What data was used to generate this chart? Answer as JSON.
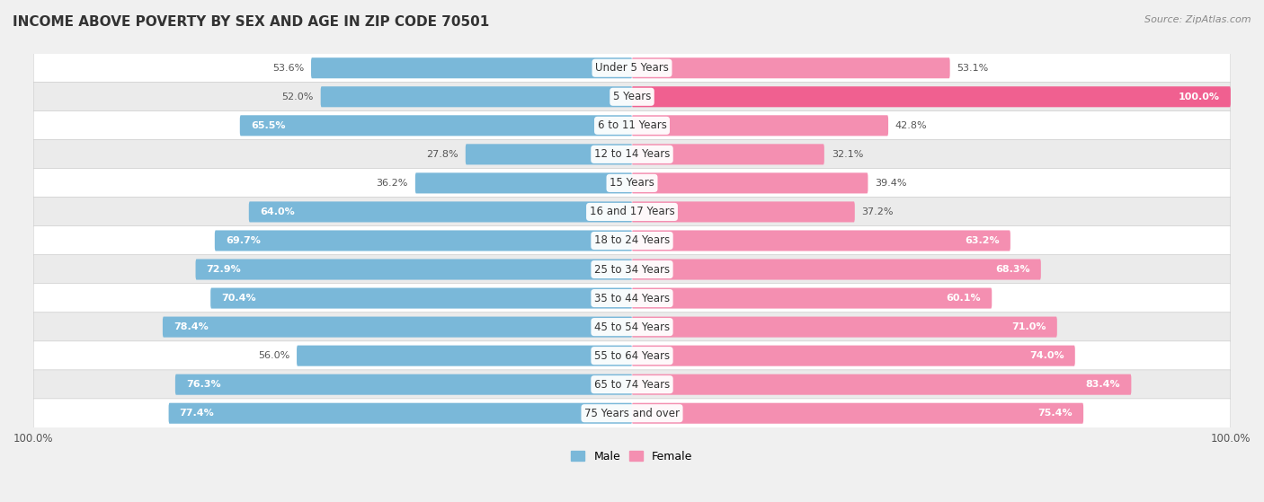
{
  "title": "INCOME ABOVE POVERTY BY SEX AND AGE IN ZIP CODE 70501",
  "source": "Source: ZipAtlas.com",
  "categories": [
    "Under 5 Years",
    "5 Years",
    "6 to 11 Years",
    "12 to 14 Years",
    "15 Years",
    "16 and 17 Years",
    "18 to 24 Years",
    "25 to 34 Years",
    "35 to 44 Years",
    "45 to 54 Years",
    "55 to 64 Years",
    "65 to 74 Years",
    "75 Years and over"
  ],
  "male_values": [
    53.6,
    52.0,
    65.5,
    27.8,
    36.2,
    64.0,
    69.7,
    72.9,
    70.4,
    78.4,
    56.0,
    76.3,
    77.4
  ],
  "female_values": [
    53.1,
    100.0,
    42.8,
    32.1,
    39.4,
    37.2,
    63.2,
    68.3,
    60.1,
    71.0,
    74.0,
    83.4,
    75.4
  ],
  "male_color": "#7ab8d9",
  "female_color": "#f48fb1",
  "female_color_bright": "#f06090",
  "bar_height": 0.68,
  "row_colors": [
    "#ffffff",
    "#ebebeb"
  ],
  "title_fontsize": 11,
  "label_fontsize": 8.5,
  "value_fontsize": 8,
  "legend_fontsize": 9,
  "source_fontsize": 8
}
